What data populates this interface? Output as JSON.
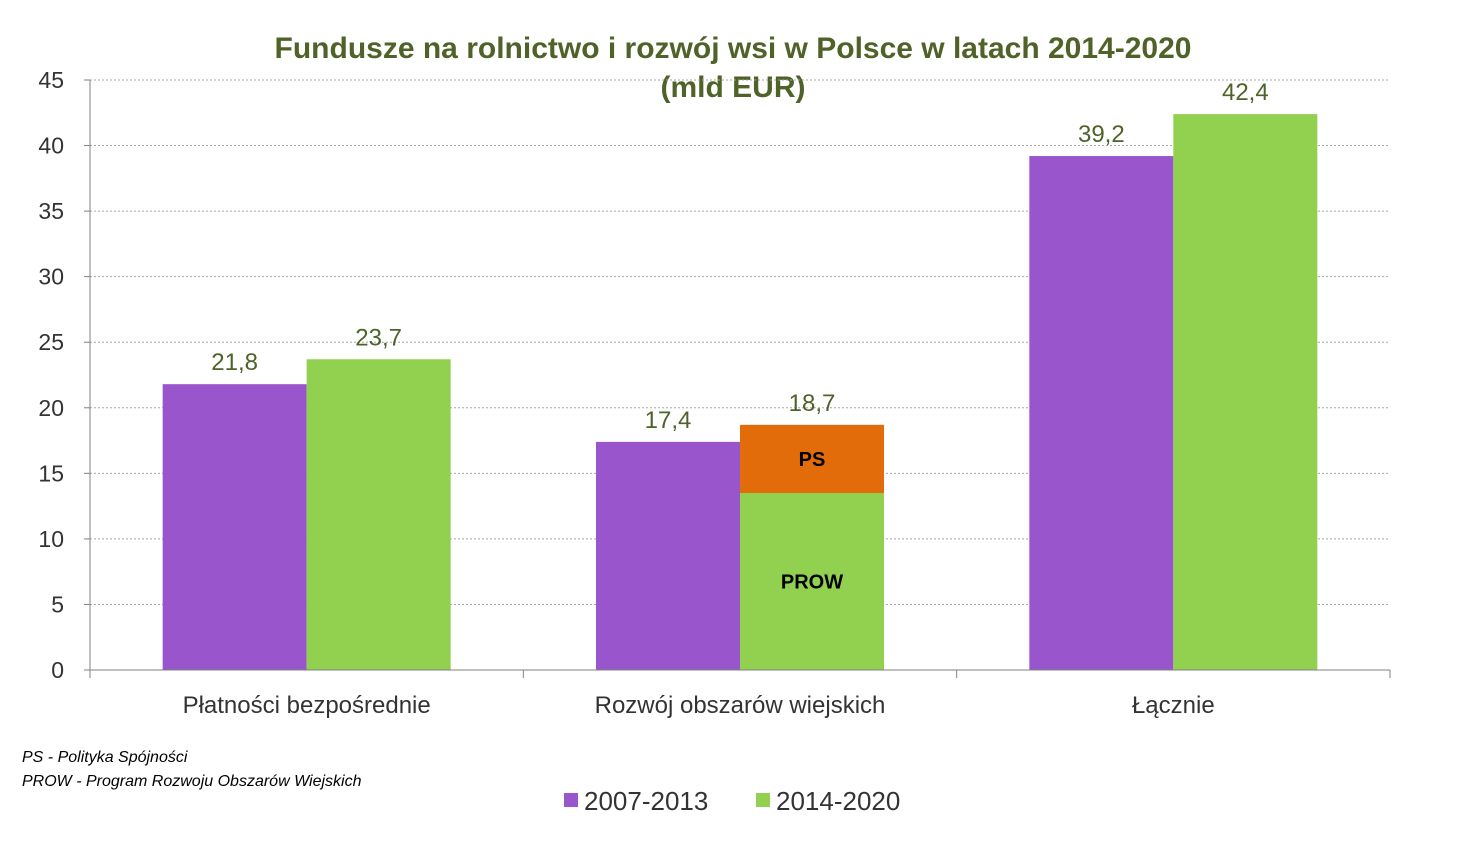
{
  "colors": {
    "series_2007_2013": "#9955cc",
    "series_2014_2020": "#92d050",
    "ps_segment": "#e36c0a",
    "title": "#4f6228",
    "data_label": "#4f6228",
    "grid": "#a6a6a6",
    "text": "#333333"
  },
  "chart_data": {
    "type": "bar",
    "title": "Fundusze  na rolnictwo i rozwój wsi w Polsce  w latach 2014-2020",
    "subtitle": "(mld EUR)",
    "categories": [
      "Płatności bezpośrednie",
      "Rozwój obszarów wiejskich",
      "Łącznie"
    ],
    "series": [
      {
        "name": "2007-2013",
        "values": [
          21.8,
          17.4,
          39.2
        ],
        "labels": [
          "21,8",
          "17,4",
          "39,2"
        ]
      },
      {
        "name": "2014-2020",
        "values": [
          23.7,
          18.7,
          42.4
        ],
        "labels": [
          "23,7",
          "18,7",
          "42,4"
        ]
      }
    ],
    "stacked_segments": {
      "category": "Rozwój obszarów wiejskich",
      "series": "2014-2020",
      "segments": [
        {
          "label": "PROW",
          "value": 13.5
        },
        {
          "label": "PS",
          "value": 5.2
        }
      ]
    },
    "ylim": [
      0,
      45
    ],
    "yticks": [
      0,
      5,
      10,
      15,
      20,
      25,
      30,
      35,
      40,
      45
    ],
    "grid": true,
    "legend": "bottom-center"
  },
  "footnotes": [
    "PS - Polityka Spójności",
    "PROW - Program Rozwoju Obszarów Wiejskich"
  ]
}
